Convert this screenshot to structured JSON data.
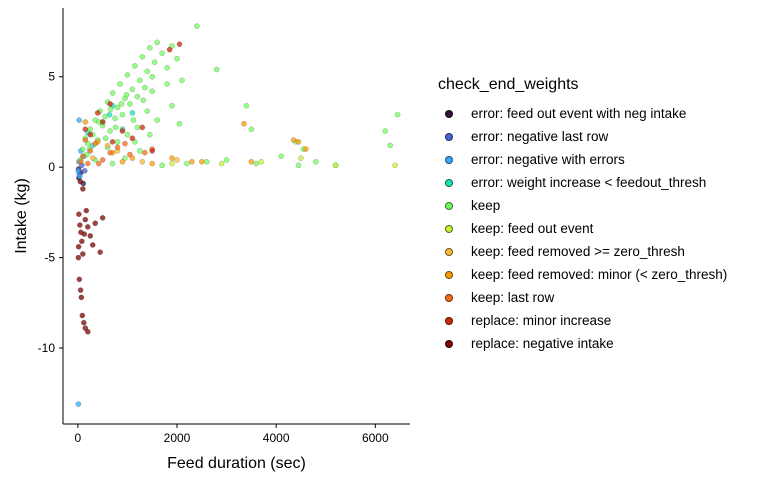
{
  "chart_data": {
    "type": "scatter",
    "title": "",
    "xlabel": "Feed duration (sec)",
    "ylabel": "Intake (kg)",
    "xlim": [
      -300,
      6700
    ],
    "ylim": [
      -14.2,
      8.8
    ],
    "x_ticks": [
      0,
      2000,
      4000,
      6000
    ],
    "y_ticks": [
      -10,
      -5,
      0,
      5
    ],
    "x_tick_labels": [
      "0",
      "2000",
      "4000",
      "6000"
    ],
    "y_tick_labels": [
      "-10",
      "-5",
      "0",
      "5"
    ],
    "grid": false,
    "legend_placement": "right",
    "legend_title": "check_end_weights",
    "series": [
      {
        "name": "error: feed out event with neg intake",
        "color": "#30123b",
        "points": [
          [
            20,
            -0.6
          ],
          [
            60,
            -0.3
          ],
          [
            110,
            -0.9
          ],
          [
            15,
            -0.1
          ]
        ]
      },
      {
        "name": "error: negative last row",
        "color": "#4662d7",
        "points": [
          [
            30,
            -0.4
          ],
          [
            80,
            0.1
          ],
          [
            140,
            -0.2
          ]
        ]
      },
      {
        "name": "error: negative with errors",
        "color": "#36aaf9",
        "points": [
          [
            10,
            -13.1
          ],
          [
            5,
            -0.2
          ],
          [
            40,
            -0.5
          ],
          [
            25,
            2.6
          ],
          [
            60,
            0.9
          ],
          [
            20,
            0.3
          ]
        ]
      },
      {
        "name": "error: weight increase < feedout_thresh",
        "color": "#1ae4b6",
        "points": [
          [
            120,
            0.6
          ],
          [
            300,
            1.2
          ],
          [
            500,
            2.5
          ],
          [
            700,
            3.4
          ],
          [
            900,
            2.1
          ],
          [
            1100,
            3.0
          ],
          [
            200,
            1.9
          ],
          [
            640,
            2.9
          ]
        ]
      },
      {
        "name": "keep",
        "color": "#72fe5e",
        "points": [
          [
            50,
            0.4
          ],
          [
            100,
            1.0
          ],
          [
            150,
            1.6
          ],
          [
            200,
            1.3
          ],
          [
            250,
            2.1
          ],
          [
            300,
            1.8
          ],
          [
            350,
            2.6
          ],
          [
            400,
            1.5
          ],
          [
            450,
            3.1
          ],
          [
            500,
            2.3
          ],
          [
            550,
            2.8
          ],
          [
            600,
            3.6
          ],
          [
            650,
            2.0
          ],
          [
            700,
            4.1
          ],
          [
            750,
            2.7
          ],
          [
            800,
            3.3
          ],
          [
            850,
            4.6
          ],
          [
            900,
            2.9
          ],
          [
            950,
            3.8
          ],
          [
            1000,
            5.1
          ],
          [
            1050,
            3.5
          ],
          [
            1100,
            4.3
          ],
          [
            1150,
            5.6
          ],
          [
            1200,
            3.9
          ],
          [
            1250,
            4.8
          ],
          [
            1300,
            6.1
          ],
          [
            1350,
            4.4
          ],
          [
            1400,
            5.3
          ],
          [
            1450,
            6.6
          ],
          [
            1500,
            5.0
          ],
          [
            1550,
            5.8
          ],
          [
            1600,
            6.9
          ],
          [
            1700,
            6.3
          ],
          [
            1800,
            5.5
          ],
          [
            1900,
            6.7
          ],
          [
            2000,
            6.0
          ],
          [
            2100,
            4.8
          ],
          [
            2400,
            7.8
          ],
          [
            2800,
            5.4
          ],
          [
            1200,
            2.2
          ],
          [
            1000,
            1.8
          ],
          [
            800,
            1.4
          ],
          [
            600,
            1.1
          ],
          [
            1400,
            3.1
          ],
          [
            1600,
            2.6
          ],
          [
            1900,
            3.4
          ],
          [
            3400,
            3.4
          ],
          [
            3500,
            2.1
          ],
          [
            4450,
            0.1
          ],
          [
            4550,
            1.0
          ],
          [
            4800,
            0.3
          ],
          [
            5200,
            0.1
          ],
          [
            6200,
            2.0
          ],
          [
            6450,
            2.9
          ],
          [
            3000,
            0.4
          ],
          [
            3600,
            0.2
          ],
          [
            4100,
            0.6
          ],
          [
            4400,
            1.4
          ],
          [
            6300,
            1.2
          ],
          [
            2200,
            0.2
          ],
          [
            2600,
            0.3
          ],
          [
            1700,
            0.1
          ],
          [
            950,
            0.5
          ],
          [
            700,
            0.2
          ],
          [
            350,
            0.4
          ],
          [
            1250,
            0.9
          ],
          [
            420,
            2.5
          ],
          [
            880,
            3.5
          ],
          [
            1120,
            2.6
          ],
          [
            760,
            2.2
          ],
          [
            560,
            1.6
          ],
          [
            1320,
            3.7
          ],
          [
            1500,
            4.2
          ],
          [
            1800,
            4.6
          ],
          [
            980,
            4.0
          ],
          [
            660,
            3.2
          ],
          [
            240,
            1.0
          ],
          [
            180,
            0.7
          ],
          [
            1150,
            1.4
          ],
          [
            1450,
            1.8
          ],
          [
            2050,
            2.4
          ]
        ]
      },
      {
        "name": "keep: feed out event",
        "color": "#c4f134",
        "points": [
          [
            5200,
            0.1
          ],
          [
            6400,
            0.1
          ],
          [
            4500,
            0.5
          ],
          [
            3700,
            0.3
          ],
          [
            2900,
            0.2
          ],
          [
            1900,
            0.2
          ]
        ]
      },
      {
        "name": "keep: feed removed >= zero_thresh",
        "color": "#fabb39",
        "points": [
          [
            300,
            0.5
          ],
          [
            800,
            0.9
          ],
          [
            1300,
            0.3
          ],
          [
            2000,
            0.4
          ],
          [
            600,
            1.2
          ]
        ]
      },
      {
        "name": "keep: feed removed: minor (< zero_thresh)",
        "color": "#fb9b06",
        "points": [
          [
            3350,
            2.4
          ],
          [
            4350,
            1.5
          ],
          [
            4450,
            1.4
          ],
          [
            4600,
            1.0
          ],
          [
            3500,
            0.3
          ],
          [
            2500,
            0.3
          ],
          [
            2300,
            0.3
          ],
          [
            1500,
            0.2
          ],
          [
            1100,
            0.5
          ],
          [
            700,
            0.8
          ],
          [
            400,
            1.4
          ],
          [
            150,
            2.5
          ],
          [
            900,
            0.3
          ],
          [
            1900,
            0.5
          ]
        ]
      },
      {
        "name": "keep: last row",
        "color": "#f66b19",
        "points": [
          [
            100,
            0.6
          ],
          [
            250,
            0.9
          ],
          [
            350,
            1.3
          ],
          [
            500,
            0.4
          ],
          [
            650,
            0.8
          ],
          [
            800,
            1.1
          ],
          [
            150,
            1.5
          ],
          [
            420,
            0.2
          ],
          [
            200,
            0.2
          ],
          [
            950,
            1.3
          ],
          [
            1050,
            0.7
          ],
          [
            1350,
            0.8
          ],
          [
            1500,
            1.0
          ],
          [
            60,
            0.3
          ]
        ]
      },
      {
        "name": "replace: minor increase",
        "color": "#cb2a04",
        "points": [
          [
            1850,
            6.5
          ],
          [
            2050,
            6.8
          ],
          [
            150,
            2.1
          ],
          [
            250,
            1.8
          ],
          [
            500,
            2.5
          ],
          [
            700,
            1.4
          ],
          [
            900,
            2.0
          ],
          [
            1100,
            1.6
          ],
          [
            1300,
            2.2
          ],
          [
            1500,
            0.9
          ],
          [
            400,
            3.0
          ],
          [
            650,
            3.5
          ]
        ]
      },
      {
        "name": "replace: negative intake",
        "color": "#7a0403",
        "points": [
          [
            20,
            -2.6
          ],
          [
            40,
            -3.2
          ],
          [
            60,
            -3.6
          ],
          [
            80,
            -4.1
          ],
          [
            100,
            -4.8
          ],
          [
            150,
            -2.9
          ],
          [
            200,
            -3.3
          ],
          [
            250,
            -3.8
          ],
          [
            300,
            -4.3
          ],
          [
            350,
            -3.1
          ],
          [
            450,
            -4.7
          ],
          [
            500,
            -2.8
          ],
          [
            30,
            -6.2
          ],
          [
            55,
            -6.8
          ],
          [
            70,
            -7.2
          ],
          [
            90,
            -8.2
          ],
          [
            120,
            -8.6
          ],
          [
            150,
            -8.9
          ],
          [
            200,
            -9.1
          ],
          [
            15,
            -4.4
          ],
          [
            100,
            -1.2
          ],
          [
            50,
            -0.8
          ],
          [
            10,
            -5.0
          ],
          [
            130,
            -3.7
          ],
          [
            170,
            -2.4
          ]
        ]
      }
    ]
  }
}
